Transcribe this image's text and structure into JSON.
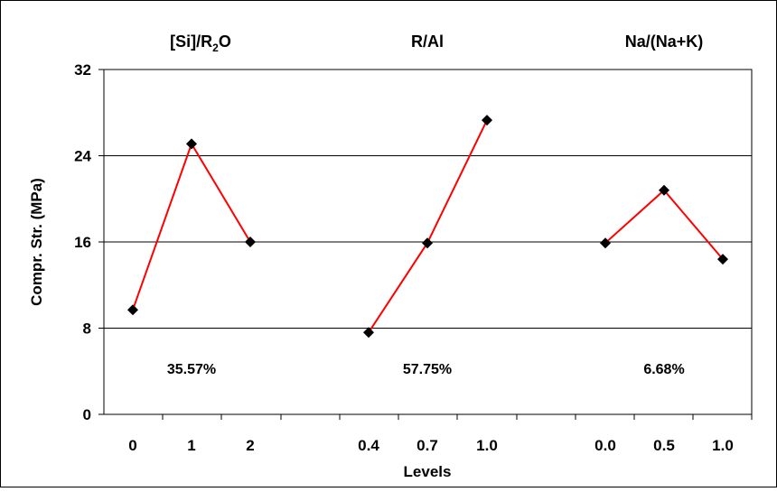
{
  "chart_data": {
    "type": "line",
    "title": "",
    "xlabel": "Levels",
    "ylabel": "Compr. Str. (MPa)",
    "ylim": [
      0,
      32
    ],
    "yticks": [
      "0",
      "8",
      "16",
      "24",
      "32"
    ],
    "grid": "horizontal",
    "legend": "none",
    "line_color": "#ff0000",
    "marker_color": "#000000",
    "groups": [
      {
        "name": "[Si]/R2O",
        "name_base": "[Si]/R",
        "name_sub": "2",
        "name_tail": "O",
        "levels": [
          "0",
          "1",
          "2"
        ],
        "values": [
          9.7,
          25.1,
          16.0
        ],
        "contribution": "35.57%"
      },
      {
        "name": "R/Al",
        "name_base": "R/Al",
        "name_sub": "",
        "name_tail": "",
        "levels": [
          "0.4",
          "0.7",
          "1.0"
        ],
        "values": [
          7.6,
          15.9,
          27.3
        ],
        "contribution": "57.75%"
      },
      {
        "name": "Na/(Na+K)",
        "name_base": "Na/(Na+K)",
        "name_sub": "",
        "name_tail": "",
        "levels": [
          "0.0",
          "0.5",
          "1.0"
        ],
        "values": [
          15.9,
          20.8,
          14.4
        ],
        "contribution": "6.68%"
      }
    ]
  }
}
